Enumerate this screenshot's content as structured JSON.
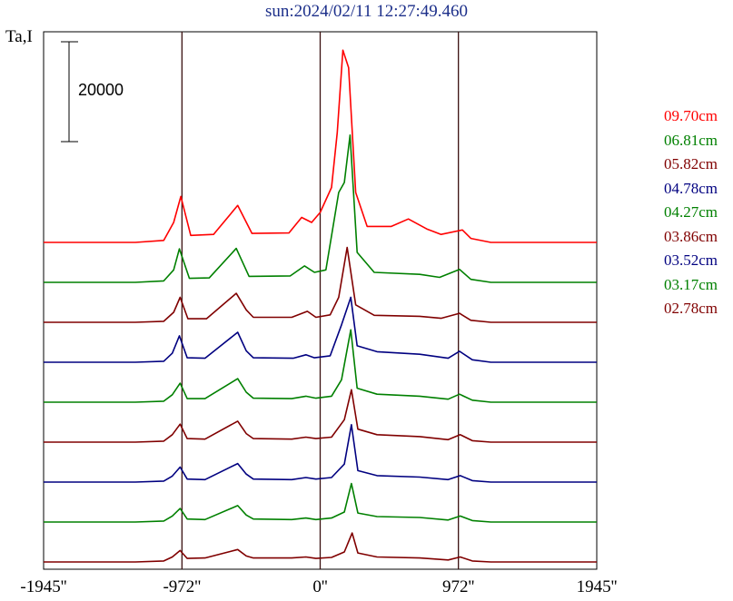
{
  "chart_data": {
    "type": "line",
    "title": "sun:2024/02/11 12:27:49.460",
    "ylabel": "Ta,I",
    "scale_bar_label": "20000",
    "scale_bar_value": 20000,
    "xlim": [
      -1945,
      1945
    ],
    "x_ticks": [
      {
        "value": -1945,
        "label": "-1945''"
      },
      {
        "value": -972,
        "label": "-972''"
      },
      {
        "value": 0,
        "label": "0''"
      },
      {
        "value": 972,
        "label": "972''"
      },
      {
        "value": 1945,
        "label": "1945''"
      }
    ],
    "vertical_lines": [
      -972,
      0,
      972
    ],
    "series": [
      {
        "name": "09.70cm",
        "color": "#ff0000",
        "offset": 8,
        "values": [
          [
            -1945,
            0
          ],
          [
            -1300,
            0
          ],
          [
            -1100,
            400
          ],
          [
            -1030,
            4000
          ],
          [
            -980,
            9200
          ],
          [
            -910,
            1400
          ],
          [
            -750,
            1600
          ],
          [
            -580,
            7400
          ],
          [
            -480,
            1800
          ],
          [
            -220,
            1900
          ],
          [
            -130,
            5000
          ],
          [
            -60,
            4000
          ],
          [
            0,
            6000
          ],
          [
            80,
            11000
          ],
          [
            120,
            22000
          ],
          [
            160,
            38500
          ],
          [
            200,
            35000
          ],
          [
            250,
            10000
          ],
          [
            330,
            3200
          ],
          [
            500,
            3200
          ],
          [
            620,
            4700
          ],
          [
            750,
            2700
          ],
          [
            850,
            1600
          ],
          [
            1000,
            2500
          ],
          [
            1060,
            800
          ],
          [
            1200,
            0
          ],
          [
            1945,
            0
          ]
        ]
      },
      {
        "name": "06.81cm",
        "color": "#008000",
        "offset": 7,
        "values": [
          [
            -1945,
            0
          ],
          [
            -1300,
            0
          ],
          [
            -1100,
            300
          ],
          [
            -1030,
            2500
          ],
          [
            -990,
            6700
          ],
          [
            -920,
            800
          ],
          [
            -780,
            900
          ],
          [
            -590,
            6800
          ],
          [
            -500,
            1200
          ],
          [
            -210,
            1300
          ],
          [
            -110,
            3300
          ],
          [
            -40,
            2000
          ],
          [
            40,
            2500
          ],
          [
            130,
            18000
          ],
          [
            170,
            20000
          ],
          [
            210,
            29500
          ],
          [
            260,
            6000
          ],
          [
            380,
            2000
          ],
          [
            700,
            1600
          ],
          [
            840,
            1000
          ],
          [
            980,
            2600
          ],
          [
            1060,
            600
          ],
          [
            1200,
            0
          ],
          [
            1945,
            0
          ]
        ]
      },
      {
        "name": "05.82cm",
        "color": "#800000",
        "offset": 6,
        "values": [
          [
            -1945,
            0
          ],
          [
            -1300,
            0
          ],
          [
            -1100,
            200
          ],
          [
            -1030,
            2000
          ],
          [
            -985,
            5000
          ],
          [
            -930,
            700
          ],
          [
            -800,
            700
          ],
          [
            -590,
            5800
          ],
          [
            -520,
            2500
          ],
          [
            -470,
            1000
          ],
          [
            -200,
            1000
          ],
          [
            -90,
            2200
          ],
          [
            -30,
            1000
          ],
          [
            70,
            1500
          ],
          [
            130,
            5000
          ],
          [
            190,
            15000
          ],
          [
            250,
            3500
          ],
          [
            380,
            1400
          ],
          [
            700,
            1200
          ],
          [
            850,
            800
          ],
          [
            980,
            1800
          ],
          [
            1060,
            400
          ],
          [
            1200,
            0
          ],
          [
            1945,
            0
          ]
        ]
      },
      {
        "name": "04.78cm",
        "color": "#000080",
        "offset": 5,
        "values": [
          [
            -1945,
            0
          ],
          [
            -1300,
            0
          ],
          [
            -1100,
            200
          ],
          [
            -1040,
            1800
          ],
          [
            -990,
            5300
          ],
          [
            -935,
            900
          ],
          [
            -810,
            800
          ],
          [
            -580,
            6000
          ],
          [
            -520,
            2300
          ],
          [
            -470,
            900
          ],
          [
            -190,
            800
          ],
          [
            -100,
            1500
          ],
          [
            -40,
            900
          ],
          [
            70,
            1300
          ],
          [
            150,
            7500
          ],
          [
            215,
            13000
          ],
          [
            260,
            3300
          ],
          [
            400,
            2100
          ],
          [
            700,
            1600
          ],
          [
            900,
            800
          ],
          [
            980,
            2200
          ],
          [
            1070,
            500
          ],
          [
            1200,
            0
          ],
          [
            1945,
            0
          ]
        ]
      },
      {
        "name": "04.27cm",
        "color": "#008000",
        "offset": 4,
        "values": [
          [
            -1945,
            0
          ],
          [
            -1300,
            0
          ],
          [
            -1100,
            200
          ],
          [
            -1040,
            1500
          ],
          [
            -985,
            3800
          ],
          [
            -935,
            700
          ],
          [
            -810,
            700
          ],
          [
            -580,
            4700
          ],
          [
            -520,
            2000
          ],
          [
            -470,
            800
          ],
          [
            -200,
            700
          ],
          [
            -100,
            1200
          ],
          [
            -30,
            800
          ],
          [
            80,
            1200
          ],
          [
            150,
            4500
          ],
          [
            215,
            14500
          ],
          [
            260,
            2800
          ],
          [
            400,
            1600
          ],
          [
            700,
            1200
          ],
          [
            900,
            600
          ],
          [
            980,
            1600
          ],
          [
            1070,
            400
          ],
          [
            1200,
            0
          ],
          [
            1945,
            0
          ]
        ]
      },
      {
        "name": "03.86cm",
        "color": "#800000",
        "offset": 3,
        "values": [
          [
            -1945,
            0
          ],
          [
            -1300,
            0
          ],
          [
            -1100,
            200
          ],
          [
            -1040,
            1500
          ],
          [
            -985,
            3600
          ],
          [
            -935,
            700
          ],
          [
            -810,
            600
          ],
          [
            -580,
            4200
          ],
          [
            -520,
            1700
          ],
          [
            -470,
            700
          ],
          [
            -200,
            600
          ],
          [
            -100,
            1000
          ],
          [
            -30,
            700
          ],
          [
            80,
            1000
          ],
          [
            170,
            4500
          ],
          [
            220,
            10500
          ],
          [
            265,
            2600
          ],
          [
            400,
            1500
          ],
          [
            700,
            1100
          ],
          [
            900,
            500
          ],
          [
            985,
            1500
          ],
          [
            1070,
            300
          ],
          [
            1200,
            0
          ],
          [
            1945,
            0
          ]
        ]
      },
      {
        "name": "03.52cm",
        "color": "#000080",
        "offset": 2,
        "values": [
          [
            -1945,
            0
          ],
          [
            -1300,
            0
          ],
          [
            -1100,
            200
          ],
          [
            -1040,
            1200
          ],
          [
            -985,
            3000
          ],
          [
            -935,
            600
          ],
          [
            -810,
            500
          ],
          [
            -580,
            3700
          ],
          [
            -520,
            1600
          ],
          [
            -470,
            600
          ],
          [
            -200,
            500
          ],
          [
            -100,
            900
          ],
          [
            -30,
            600
          ],
          [
            80,
            900
          ],
          [
            170,
            3600
          ],
          [
            220,
            11500
          ],
          [
            265,
            2300
          ],
          [
            400,
            1300
          ],
          [
            700,
            1000
          ],
          [
            900,
            500
          ],
          [
            985,
            1300
          ],
          [
            1070,
            300
          ],
          [
            1200,
            0
          ],
          [
            1945,
            0
          ]
        ]
      },
      {
        "name": "03.17cm",
        "color": "#008000",
        "offset": 1,
        "values": [
          [
            -1945,
            0
          ],
          [
            -1300,
            0
          ],
          [
            -1100,
            200
          ],
          [
            -1040,
            1200
          ],
          [
            -985,
            2700
          ],
          [
            -935,
            600
          ],
          [
            -810,
            500
          ],
          [
            -580,
            3300
          ],
          [
            -520,
            1400
          ],
          [
            -470,
            600
          ],
          [
            -200,
            500
          ],
          [
            -100,
            800
          ],
          [
            -30,
            500
          ],
          [
            80,
            800
          ],
          [
            170,
            2000
          ],
          [
            220,
            7700
          ],
          [
            265,
            1800
          ],
          [
            400,
            1100
          ],
          [
            700,
            900
          ],
          [
            900,
            400
          ],
          [
            985,
            1200
          ],
          [
            1070,
            300
          ],
          [
            1200,
            0
          ],
          [
            1945,
            0
          ]
        ]
      },
      {
        "name": "02.78cm",
        "color": "#800000",
        "offset": 0,
        "values": [
          [
            -1945,
            0
          ],
          [
            -1300,
            0
          ],
          [
            -1100,
            200
          ],
          [
            -1040,
            1000
          ],
          [
            -985,
            2300
          ],
          [
            -935,
            700
          ],
          [
            -810,
            800
          ],
          [
            -580,
            2500
          ],
          [
            -520,
            1200
          ],
          [
            -470,
            800
          ],
          [
            -200,
            800
          ],
          [
            -100,
            1000
          ],
          [
            -30,
            700
          ],
          [
            80,
            900
          ],
          [
            170,
            2000
          ],
          [
            225,
            5800
          ],
          [
            265,
            1800
          ],
          [
            400,
            1000
          ],
          [
            700,
            800
          ],
          [
            900,
            400
          ],
          [
            985,
            1000
          ],
          [
            1070,
            200
          ],
          [
            1200,
            0
          ],
          [
            1945,
            0
          ]
        ]
      }
    ]
  }
}
